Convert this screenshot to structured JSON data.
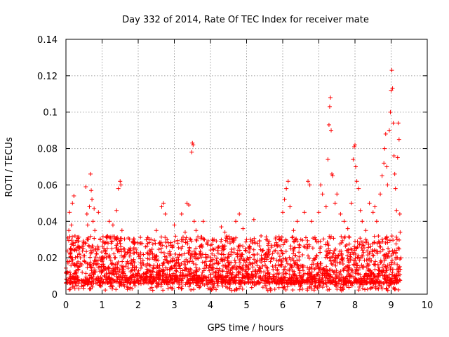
{
  "chart_data": {
    "type": "scatter",
    "title": "Day 332 of 2014, Rate Of TEC Index for receiver mate",
    "xlabel": "GPS time / hours",
    "ylabel": "ROTI / TECUs",
    "xlim": [
      0,
      10
    ],
    "ylim": [
      0,
      0.14
    ],
    "xticks": [
      0,
      1,
      2,
      3,
      4,
      5,
      6,
      7,
      8,
      9,
      10
    ],
    "yticks": [
      0,
      0.02,
      0.04,
      0.06,
      0.08,
      0.1,
      0.12,
      0.14
    ],
    "xtick_labels": [
      "0",
      "1",
      "2",
      "3",
      "4",
      "5",
      "6",
      "7",
      "8",
      "9",
      "10"
    ],
    "ytick_labels": [
      "0",
      "0.02",
      "0.04",
      "0.06",
      "0.08",
      "0.1",
      "0.12",
      "0.14"
    ],
    "grid": true,
    "marker": "+",
    "color": "#ff0000",
    "series": [
      {
        "name": "ROTI",
        "points": [
          [
            0.0,
            0.012
          ],
          [
            0.05,
            0.018
          ],
          [
            0.08,
            0.035
          ],
          [
            0.1,
            0.045
          ],
          [
            0.12,
            0.022
          ],
          [
            0.15,
            0.038
          ],
          [
            0.18,
            0.05
          ],
          [
            0.2,
            0.028
          ],
          [
            0.22,
            0.054
          ],
          [
            0.25,
            0.032
          ],
          [
            0.28,
            0.016
          ],
          [
            0.3,
            0.024
          ],
          [
            0.35,
            0.015
          ],
          [
            0.4,
            0.02
          ],
          [
            0.45,
            0.012
          ],
          [
            0.5,
            0.028
          ],
          [
            0.55,
            0.059
          ],
          [
            0.58,
            0.044
          ],
          [
            0.6,
            0.038
          ],
          [
            0.62,
            0.03
          ],
          [
            0.65,
            0.048
          ],
          [
            0.68,
            0.066
          ],
          [
            0.7,
            0.057
          ],
          [
            0.72,
            0.052
          ],
          [
            0.75,
            0.04
          ],
          [
            0.78,
            0.047
          ],
          [
            0.8,
            0.035
          ],
          [
            0.85,
            0.022
          ],
          [
            0.9,
            0.045
          ],
          [
            0.95,
            0.03
          ],
          [
            1.0,
            0.018
          ],
          [
            1.05,
            0.025
          ],
          [
            1.1,
            0.014
          ],
          [
            1.15,
            0.032
          ],
          [
            1.2,
            0.04
          ],
          [
            1.25,
            0.028
          ],
          [
            1.3,
            0.038
          ],
          [
            1.35,
            0.02
          ],
          [
            1.4,
            0.046
          ],
          [
            1.45,
            0.058
          ],
          [
            1.5,
            0.062
          ],
          [
            1.52,
            0.06
          ],
          [
            1.55,
            0.035
          ],
          [
            1.6,
            0.02
          ],
          [
            1.7,
            0.018
          ],
          [
            1.8,
            0.024
          ],
          [
            1.9,
            0.015
          ],
          [
            2.0,
            0.022
          ],
          [
            2.1,
            0.017
          ],
          [
            2.2,
            0.026
          ],
          [
            2.3,
            0.03
          ],
          [
            2.4,
            0.02
          ],
          [
            2.5,
            0.035
          ],
          [
            2.6,
            0.028
          ],
          [
            2.65,
            0.048
          ],
          [
            2.7,
            0.05
          ],
          [
            2.75,
            0.044
          ],
          [
            2.8,
            0.03
          ],
          [
            2.9,
            0.022
          ],
          [
            3.0,
            0.038
          ],
          [
            3.1,
            0.028
          ],
          [
            3.2,
            0.044
          ],
          [
            3.3,
            0.034
          ],
          [
            3.35,
            0.05
          ],
          [
            3.4,
            0.049
          ],
          [
            3.45,
            0.03
          ],
          [
            3.5,
            0.083
          ],
          [
            3.52,
            0.082
          ],
          [
            3.48,
            0.078
          ],
          [
            3.55,
            0.04
          ],
          [
            3.6,
            0.035
          ],
          [
            3.7,
            0.026
          ],
          [
            3.8,
            0.04
          ],
          [
            3.9,
            0.02
          ],
          [
            4.0,
            0.018
          ],
          [
            4.1,
            0.03
          ],
          [
            4.2,
            0.024
          ],
          [
            4.3,
            0.037
          ],
          [
            4.4,
            0.034
          ],
          [
            4.5,
            0.022
          ],
          [
            4.6,
            0.03
          ],
          [
            4.7,
            0.04
          ],
          [
            4.8,
            0.044
          ],
          [
            4.9,
            0.036
          ],
          [
            5.0,
            0.03
          ],
          [
            5.1,
            0.025
          ],
          [
            5.2,
            0.041
          ],
          [
            5.3,
            0.022
          ],
          [
            5.4,
            0.032
          ],
          [
            5.5,
            0.018
          ],
          [
            5.6,
            0.028
          ],
          [
            5.7,
            0.02
          ],
          [
            5.8,
            0.024
          ],
          [
            5.9,
            0.03
          ],
          [
            6.0,
            0.045
          ],
          [
            6.05,
            0.052
          ],
          [
            6.1,
            0.058
          ],
          [
            6.15,
            0.062
          ],
          [
            6.2,
            0.048
          ],
          [
            6.3,
            0.035
          ],
          [
            6.4,
            0.04
          ],
          [
            6.5,
            0.03
          ],
          [
            6.6,
            0.045
          ],
          [
            6.7,
            0.062
          ],
          [
            6.75,
            0.06
          ],
          [
            6.8,
            0.04
          ],
          [
            6.9,
            0.03
          ],
          [
            7.0,
            0.045
          ],
          [
            7.05,
            0.06
          ],
          [
            7.1,
            0.055
          ],
          [
            7.2,
            0.048
          ],
          [
            7.25,
            0.074
          ],
          [
            7.28,
            0.093
          ],
          [
            7.3,
            0.103
          ],
          [
            7.32,
            0.108
          ],
          [
            7.34,
            0.09
          ],
          [
            7.36,
            0.066
          ],
          [
            7.38,
            0.065
          ],
          [
            7.45,
            0.05
          ],
          [
            7.5,
            0.055
          ],
          [
            7.6,
            0.044
          ],
          [
            7.7,
            0.04
          ],
          [
            7.8,
            0.036
          ],
          [
            7.9,
            0.05
          ],
          [
            7.95,
            0.074
          ],
          [
            7.98,
            0.081
          ],
          [
            8.0,
            0.082
          ],
          [
            8.02,
            0.07
          ],
          [
            8.05,
            0.062
          ],
          [
            8.1,
            0.058
          ],
          [
            8.15,
            0.046
          ],
          [
            8.2,
            0.04
          ],
          [
            8.3,
            0.035
          ],
          [
            8.4,
            0.05
          ],
          [
            8.5,
            0.045
          ],
          [
            8.55,
            0.048
          ],
          [
            8.6,
            0.04
          ],
          [
            8.7,
            0.055
          ],
          [
            8.75,
            0.065
          ],
          [
            8.8,
            0.072
          ],
          [
            8.82,
            0.08
          ],
          [
            8.85,
            0.088
          ],
          [
            8.88,
            0.07
          ],
          [
            8.9,
            0.06
          ],
          [
            8.95,
            0.09
          ],
          [
            8.98,
            0.1
          ],
          [
            9.0,
            0.112
          ],
          [
            9.02,
            0.123
          ],
          [
            9.04,
            0.113
          ],
          [
            9.06,
            0.094
          ],
          [
            9.08,
            0.076
          ],
          [
            9.1,
            0.066
          ],
          [
            9.12,
            0.058
          ],
          [
            9.15,
            0.046
          ],
          [
            9.18,
            0.075
          ],
          [
            9.2,
            0.094
          ],
          [
            9.22,
            0.085
          ],
          [
            9.24,
            0.044
          ],
          [
            9.25,
            0.034
          ],
          [
            9.27,
            0.02
          ]
        ]
      }
    ],
    "background_points": {
      "description": "dense baseline cloud",
      "x_range": [
        0.0,
        9.25
      ],
      "y_range": [
        0.002,
        0.03
      ]
    }
  }
}
